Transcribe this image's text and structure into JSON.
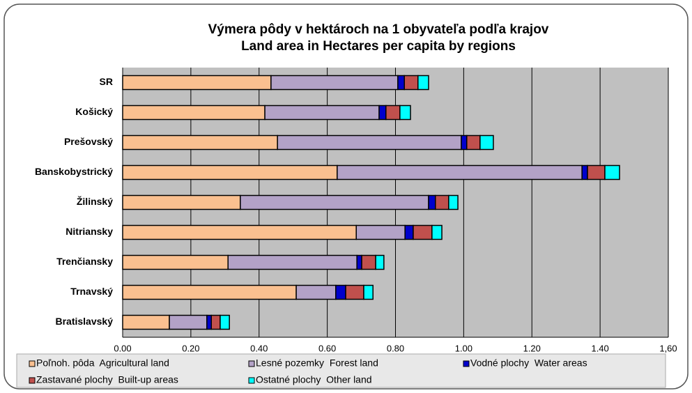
{
  "chart_data": {
    "type": "stacked_barh",
    "title": "Výmera pôdy v hektároch na 1 obyvateľa podľa krajov",
    "subtitle": "Land area in Hectares per capita by regions",
    "categories": [
      "SR",
      "Košický",
      "Prešovský",
      "Banskobystrický",
      "Žilinský",
      "Nitriansky",
      "Trenčiansky",
      "Trnavský",
      "Bratislavský"
    ],
    "series": [
      {
        "name": "Poľnoh. pôda  Agricultural land",
        "color": "#fac090",
        "values": [
          0.435,
          0.417,
          0.454,
          0.629,
          0.345,
          0.685,
          0.309,
          0.509,
          0.137
        ]
      },
      {
        "name": "Lesné pozemky  Forest land",
        "color": "#b3a2c7",
        "values": [
          0.372,
          0.335,
          0.539,
          0.718,
          0.552,
          0.143,
          0.378,
          0.116,
          0.11
        ]
      },
      {
        "name": "Vodné plochy  Water areas",
        "color": "#0000cc",
        "values": [
          0.019,
          0.02,
          0.016,
          0.016,
          0.02,
          0.024,
          0.014,
          0.029,
          0.013
        ]
      },
      {
        "name": "Zastavané plochy  Built-up areas",
        "color": "#c0504d",
        "values": [
          0.04,
          0.041,
          0.039,
          0.051,
          0.039,
          0.055,
          0.041,
          0.053,
          0.026
        ]
      },
      {
        "name": "Ostatné plochy  Other land",
        "color": "#00ffff",
        "values": [
          0.031,
          0.031,
          0.039,
          0.043,
          0.027,
          0.029,
          0.024,
          0.027,
          0.027
        ]
      }
    ],
    "xlim": [
      0,
      1.6
    ],
    "xticks": [
      {
        "value": 0,
        "label": "0.00"
      },
      {
        "value": 0.2,
        "label": "0.20"
      },
      {
        "value": 0.4,
        "label": "0.40"
      },
      {
        "value": 0.6,
        "label": "0.60"
      },
      {
        "value": 0.8,
        "label": "0.80"
      },
      {
        "value": 1.0,
        "label": "1.00"
      },
      {
        "value": 1.2,
        "label": "1.20"
      },
      {
        "value": 1.4,
        "label": "1.40"
      },
      {
        "value": 1.6,
        "label": "1,60"
      }
    ],
    "grid": true,
    "legend": "bottom"
  }
}
